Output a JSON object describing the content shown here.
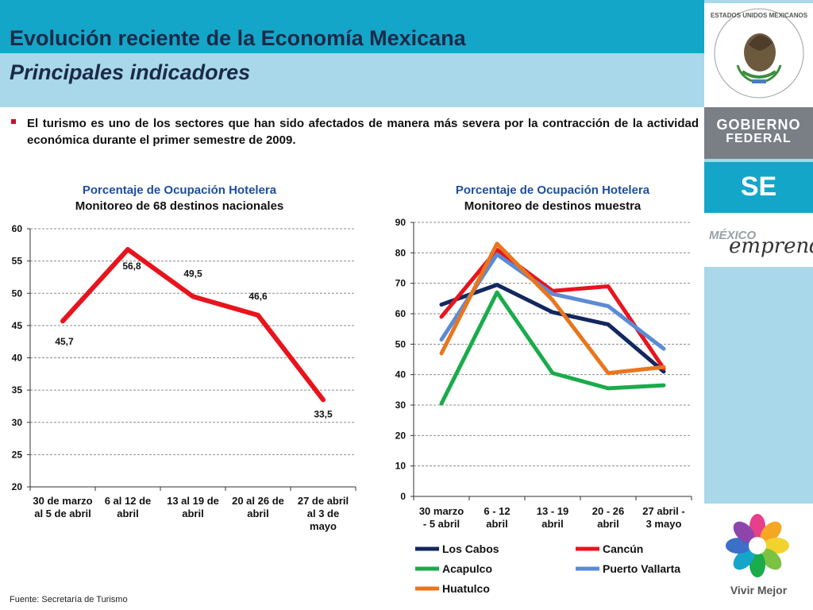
{
  "header": {
    "title": "Evolución reciente de la Economía Mexicana",
    "subtitle": "Principales indicadores"
  },
  "bullet": "El turismo es uno de los sectores que han sido afectados de manera más severa por la contracción de la actividad económica durante el primer semestre de 2009.",
  "source": "Fuente: Secretaría de Turismo",
  "sidebar": {
    "seal_text": "ESTADOS UNIDOS MEXICANOS",
    "gobierno_line1": "GOBIERNO",
    "gobierno_line2": "FEDERAL",
    "se": "SE",
    "mexico": "MÉXICO",
    "emprende": "emprende",
    "vivir_mejor": "Vivir Mejor"
  },
  "colors": {
    "header_dark": "#14a6c9",
    "header_light": "#a8d8ea",
    "title_text": "#1b2a47",
    "bullet_red": "#c8102e"
  },
  "chart_data": [
    {
      "type": "line",
      "title": "Porcentaje de Ocupación Hotelera",
      "subtitle": "Monitoreo de 68 destinos nacionales",
      "categories": [
        "30 de marzo al 5 de abril",
        "6 al 12 de abril",
        "13 al 19 de abril",
        "20 al 26 de abril",
        "27 de abril al 3 de mayo"
      ],
      "category_lines": [
        [
          "30 de marzo",
          "al 5 de abril"
        ],
        [
          "6 al 12 de",
          "abril"
        ],
        [
          "13 al 19 de",
          "abril"
        ],
        [
          "20 al 26 de",
          "abril"
        ],
        [
          "27 de abril",
          "al 3 de",
          "mayo"
        ]
      ],
      "series": [
        {
          "values": [
            45.7,
            56.8,
            49.5,
            46.6,
            33.5
          ],
          "labels": [
            "45,7",
            "56,8",
            "49,5",
            "46,6",
            "33,5"
          ],
          "color": "#e8141d"
        }
      ],
      "ylim": [
        20,
        60
      ],
      "yticks": [
        20,
        25,
        30,
        35,
        40,
        45,
        50,
        55,
        60
      ],
      "grid": true
    },
    {
      "type": "line",
      "title": "Porcentaje de Ocupación Hotelera",
      "subtitle": "Monitoreo de destinos muestra",
      "categories": [
        "30 marzo - 5 abril",
        "6 - 12 abril",
        "13 - 19 abril",
        "20 - 26 abril",
        "27 abril - 3 mayo"
      ],
      "category_lines": [
        [
          "30 marzo",
          "- 5 abril"
        ],
        [
          "6 - 12",
          "abril"
        ],
        [
          "13 - 19",
          "abril"
        ],
        [
          "20 - 26",
          "abril"
        ],
        [
          "27 abril -",
          "3 mayo"
        ]
      ],
      "series": [
        {
          "name": "Los Cabos",
          "values": [
            63,
            69.5,
            60.5,
            56.5,
            41
          ],
          "color": "#12285f"
        },
        {
          "name": "Cancún",
          "values": [
            59,
            81,
            67.5,
            69,
            42
          ],
          "color": "#e8141d"
        },
        {
          "name": "Acapulco",
          "values": [
            30.5,
            67,
            40.5,
            35.5,
            36.5
          ],
          "color": "#1aab4b"
        },
        {
          "name": "Puerto Vallarta",
          "values": [
            51.5,
            79.5,
            66.5,
            62.5,
            48.5
          ],
          "color": "#5b8bd6"
        },
        {
          "name": "Huatulco",
          "values": [
            47,
            83,
            64.5,
            40.5,
            42.5
          ],
          "color": "#e8761e"
        }
      ],
      "ylim": [
        0,
        90
      ],
      "yticks": [
        0,
        10,
        20,
        30,
        40,
        50,
        60,
        70,
        80,
        90
      ],
      "grid": true,
      "legend": "bottom"
    }
  ]
}
